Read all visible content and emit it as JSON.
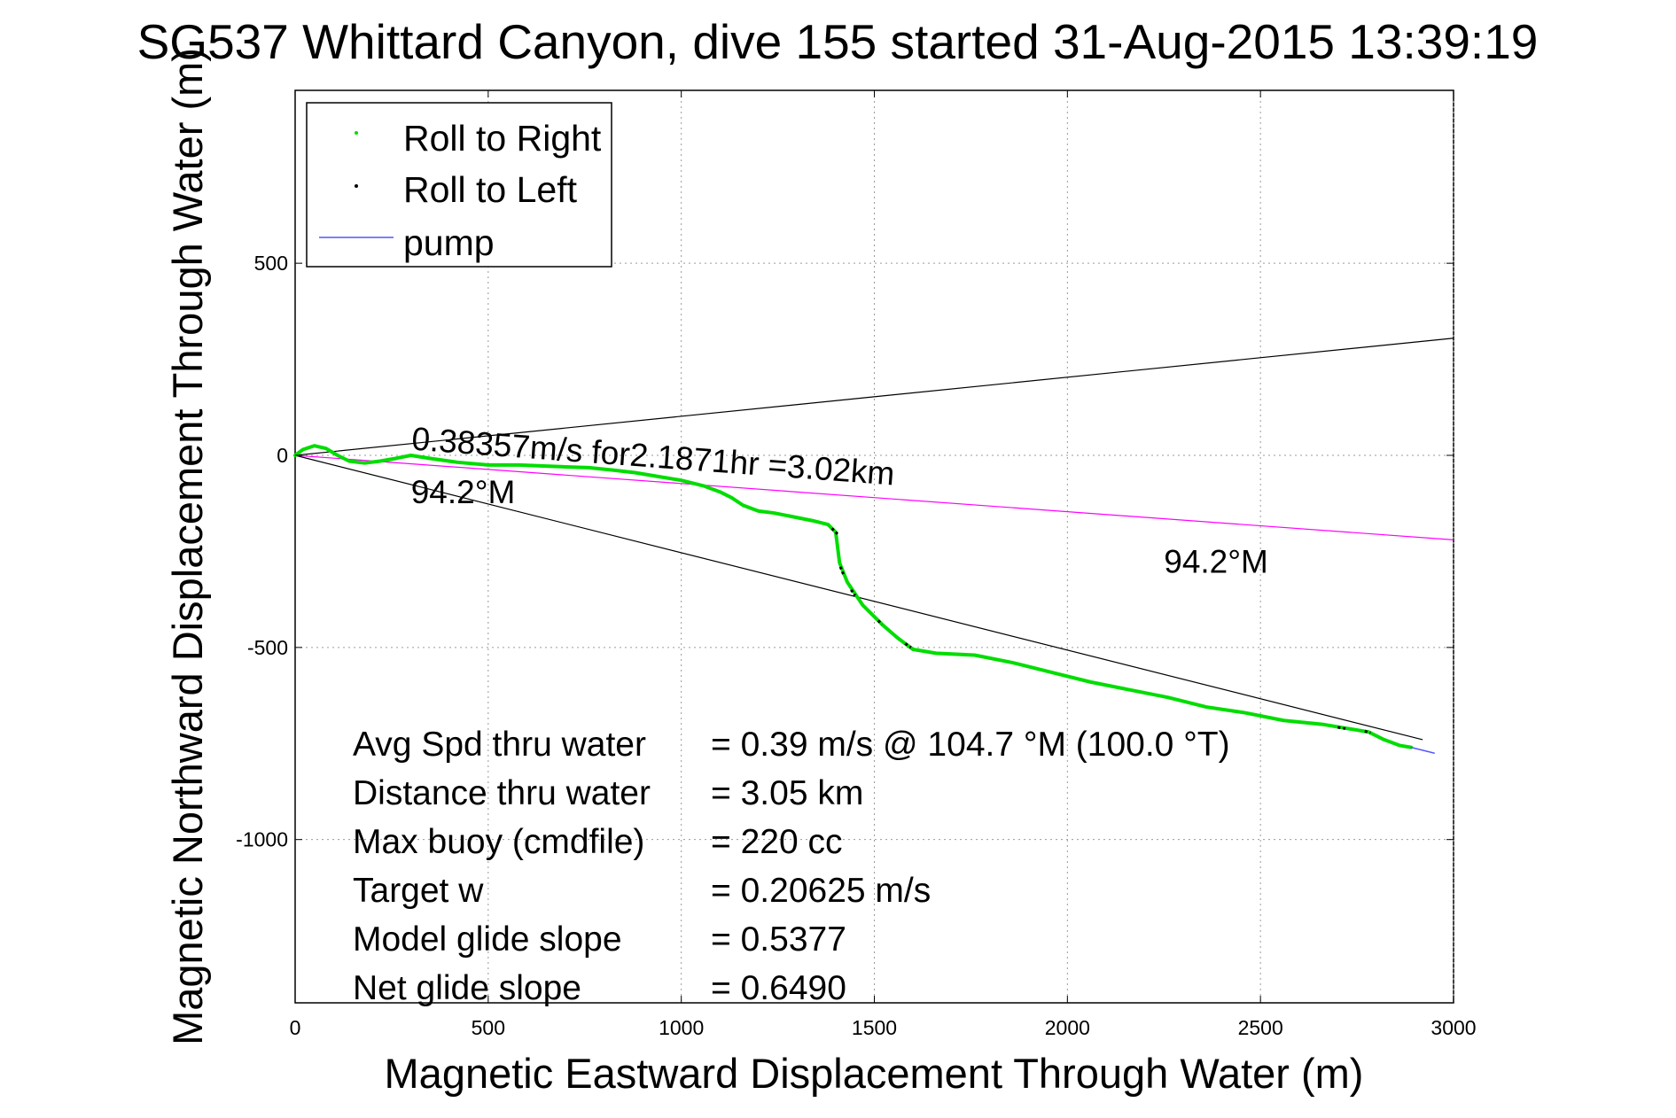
{
  "chart_data": {
    "type": "line",
    "title": "SG537 Whittard Canyon, dive 155 started 31-Aug-2015 13:39:19",
    "xlabel": "Magnetic Eastward Displacement Through Water (m)",
    "ylabel": "Magnetic Northward Displacement Through Water (m)",
    "xlim": [
      0,
      3000
    ],
    "ylim": [
      -1425,
      950
    ],
    "xticks": [
      0,
      500,
      1000,
      1500,
      2000,
      2500,
      3000
    ],
    "yticks": [
      500,
      0,
      -500,
      -1000
    ],
    "grid": true,
    "legend": {
      "position": "top-left",
      "entries": [
        {
          "label": "Roll to Right",
          "color": "#00dd00",
          "marker": "dot"
        },
        {
          "label": "Roll to Left",
          "color": "#000000",
          "marker": "dot"
        },
        {
          "label": "pump",
          "color": "#5555ff",
          "marker": "line"
        }
      ]
    },
    "series": [
      {
        "name": "Roll to Right",
        "color": "#00dd00",
        "points": [
          [
            0,
            0
          ],
          [
            20,
            15
          ],
          [
            50,
            25
          ],
          [
            80,
            18
          ],
          [
            110,
            0
          ],
          [
            140,
            -15
          ],
          [
            180,
            -20
          ],
          [
            220,
            -15
          ],
          [
            260,
            -8
          ],
          [
            300,
            0
          ],
          [
            350,
            -8
          ],
          [
            420,
            -18
          ],
          [
            500,
            -25
          ],
          [
            580,
            -25
          ],
          [
            650,
            -28
          ],
          [
            700,
            -30
          ],
          [
            760,
            -32
          ],
          [
            820,
            -38
          ],
          [
            880,
            -45
          ],
          [
            940,
            -55
          ],
          [
            1000,
            -65
          ],
          [
            1060,
            -80
          ],
          [
            1100,
            -95
          ],
          [
            1130,
            -110
          ],
          [
            1160,
            -130
          ],
          [
            1200,
            -145
          ],
          [
            1240,
            -150
          ],
          [
            1290,
            -160
          ],
          [
            1340,
            -170
          ],
          [
            1380,
            -180
          ],
          [
            1400,
            -200
          ],
          [
            1405,
            -240
          ],
          [
            1410,
            -280
          ],
          [
            1430,
            -330
          ],
          [
            1470,
            -390
          ],
          [
            1520,
            -440
          ],
          [
            1560,
            -475
          ],
          [
            1600,
            -505
          ],
          [
            1660,
            -515
          ],
          [
            1760,
            -520
          ],
          [
            1860,
            -540
          ],
          [
            1960,
            -565
          ],
          [
            2060,
            -590
          ],
          [
            2160,
            -610
          ],
          [
            2260,
            -630
          ],
          [
            2360,
            -655
          ],
          [
            2460,
            -670
          ],
          [
            2560,
            -690
          ],
          [
            2660,
            -700
          ],
          [
            2720,
            -710
          ],
          [
            2780,
            -720
          ],
          [
            2820,
            -740
          ],
          [
            2860,
            -755
          ],
          [
            2890,
            -760
          ]
        ]
      },
      {
        "name": "Roll to Left",
        "color": "#000000",
        "segments": [
          [
            [
              1390,
              -190
            ],
            [
              1405,
              -205
            ]
          ],
          [
            [
              1412,
              -290
            ],
            [
              1420,
              -310
            ]
          ],
          [
            [
              1440,
              -350
            ],
            [
              1450,
              -365
            ]
          ],
          [
            [
              1510,
              -430
            ],
            [
              1520,
              -440
            ]
          ],
          [
            [
              1580,
              -490
            ],
            [
              1595,
              -500
            ]
          ],
          [
            [
              2700,
              -708
            ],
            [
              2720,
              -711
            ]
          ],
          [
            [
              2770,
              -718
            ],
            [
              2785,
              -722
            ]
          ]
        ]
      },
      {
        "name": "pump",
        "color": "#5555ff",
        "points": [
          [
            2890,
            -760
          ],
          [
            2950,
            -775
          ]
        ]
      }
    ],
    "reference_lines": [
      {
        "color": "#000000",
        "points": [
          [
            0,
            0
          ],
          [
            3000,
            305
          ]
        ]
      },
      {
        "color": "#000000",
        "points": [
          [
            0,
            0
          ],
          [
            2920,
            -740
          ]
        ]
      },
      {
        "color": "#ff00ff",
        "points": [
          [
            0,
            0
          ],
          [
            3000,
            -220
          ]
        ]
      }
    ],
    "annotations": [
      {
        "text": "0.38357m/s for2.1871hr =3.02km",
        "x": 300,
        "y": 15,
        "rotation": -4.2
      },
      {
        "text": "94.2°M",
        "x": 300,
        "y": -125
      },
      {
        "text": "94.2°M",
        "x": 2250,
        "y": -305
      }
    ],
    "stats": {
      "rows": [
        {
          "label": "Avg Spd thru water",
          "value": "=  0.39 m/s @ 104.7 °M (100.0 °T)"
        },
        {
          "label": "Distance thru water",
          "value": "=  3.05 km"
        },
        {
          "label": "Max buoy (cmdfile)",
          "value": "= 220 cc"
        },
        {
          "label": "Target w",
          "value": "= 0.20625 m/s"
        },
        {
          "label": "Model glide slope",
          "value": "= 0.5377"
        },
        {
          "label": "Net glide slope",
          "value": "= 0.6490"
        }
      ]
    }
  }
}
